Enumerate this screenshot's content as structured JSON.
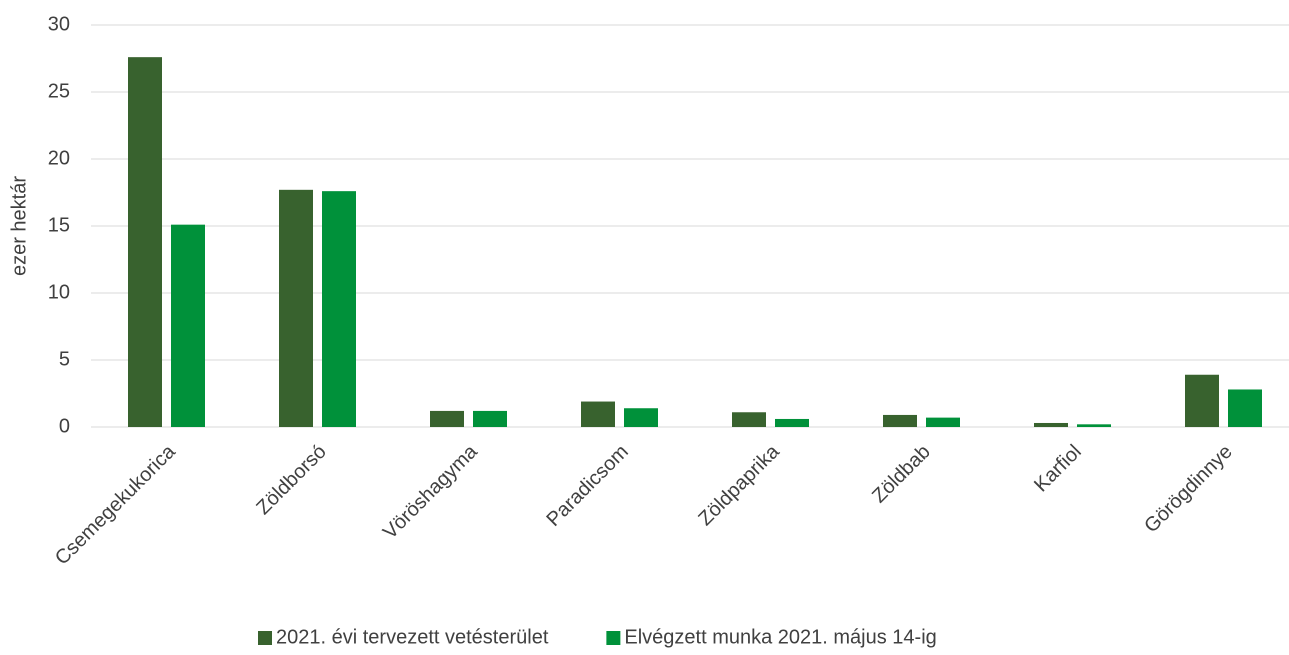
{
  "chart_data": {
    "type": "bar",
    "y_label": "ezer hektár",
    "categories": [
      "Csemegekukorica",
      "Zöldborsó",
      "Vöröshagyma",
      "Paradicsom",
      "Zöldpaprika",
      "Zöldbab",
      "Karfiol",
      "Görögdinnye"
    ],
    "series": [
      {
        "name": "2021. évi tervezett vetésterület",
        "color": "#38622e",
        "values": [
          27.6,
          17.7,
          1.2,
          1.9,
          1.1,
          0.9,
          0.3,
          3.9
        ]
      },
      {
        "name": "Elvégzett munka 2021. május 14-ig",
        "color": "#00913a",
        "values": [
          15.1,
          17.6,
          1.2,
          1.4,
          0.6,
          0.7,
          0.2,
          2.8
        ]
      }
    ],
    "ylim": [
      0,
      30
    ],
    "yticks": [
      0,
      5,
      10,
      15,
      20,
      25,
      30
    ],
    "grid": true
  }
}
